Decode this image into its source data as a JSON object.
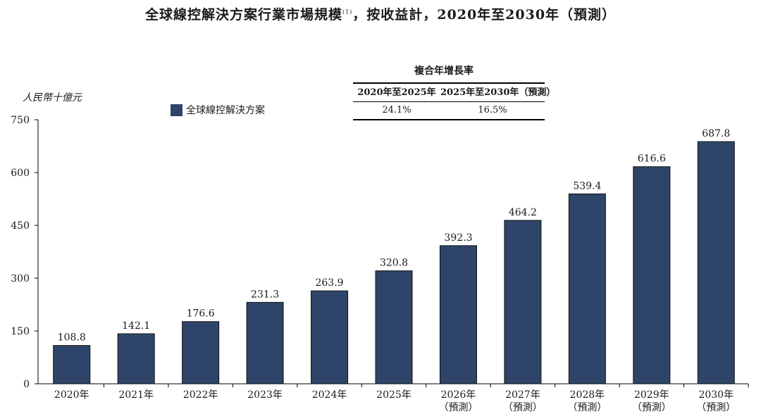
{
  "title": {
    "text": "全球線控解決方案行業市場規模",
    "note": "(1)",
    "suffix": "，按收益計，2020年至2030年（預測）"
  },
  "unit_label": "人民幣十億元",
  "legend": {
    "label": "全球線控解決方案",
    "color": "#2e4569"
  },
  "cagr": {
    "heading": "複合年增長率",
    "columns": [
      "2020年至2025年",
      "2025年至2030年（預測）"
    ],
    "values": [
      "24.1%",
      "16.5%"
    ]
  },
  "chart_data": {
    "type": "bar",
    "categories": [
      "2020年",
      "2021年",
      "2022年",
      "2023年",
      "2024年",
      "2025年",
      "2026年",
      "2027年",
      "2028年",
      "2029年",
      "2030年"
    ],
    "category_sublabels": [
      "",
      "",
      "",
      "",
      "",
      "",
      "（預測）",
      "（預測）",
      "（預測）",
      "（預測）",
      "（預測）"
    ],
    "series": [
      {
        "name": "全球線控解決方案",
        "values": [
          108.8,
          142.1,
          176.6,
          231.3,
          263.9,
          320.8,
          392.3,
          464.2,
          539.4,
          616.6,
          687.8
        ]
      }
    ],
    "value_labels": [
      "108.8",
      "142.1",
      "176.6",
      "231.3",
      "263.9",
      "320.8",
      "392.3",
      "464.2",
      "539.4",
      "616.6",
      "687.8"
    ],
    "ylabel": "人民幣十億元",
    "ylim": [
      0,
      750
    ],
    "yticks": [
      "0",
      "150",
      "300",
      "450",
      "600",
      "750"
    ],
    "grid": false,
    "legend_position": "top-left",
    "bar_color": "#2e4569"
  }
}
